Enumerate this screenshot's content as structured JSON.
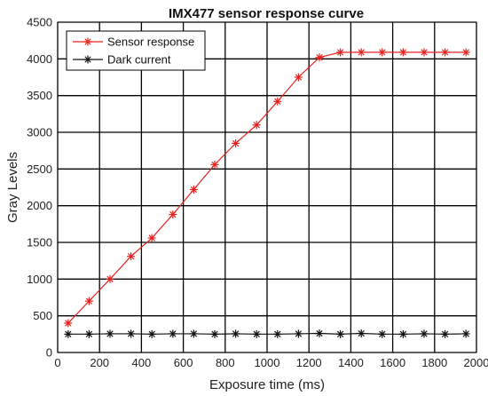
{
  "chart_data": {
    "type": "line",
    "title": "IMX477 sensor response curve",
    "xlabel": "Exposure time (ms)",
    "ylabel": "Gray Levels",
    "xlim": [
      0,
      2000
    ],
    "ylim": [
      0,
      4500
    ],
    "xticks": [
      0,
      200,
      400,
      600,
      800,
      1000,
      1200,
      1400,
      1600,
      1800,
      2000
    ],
    "yticks": [
      0,
      500,
      1000,
      1500,
      2000,
      2500,
      3000,
      3500,
      4000,
      4500
    ],
    "grid": true,
    "legend_position": "top-left",
    "x": [
      50,
      150,
      250,
      350,
      450,
      550,
      650,
      750,
      850,
      950,
      1050,
      1150,
      1250,
      1350,
      1450,
      1550,
      1650,
      1750,
      1850,
      1950
    ],
    "series": [
      {
        "name": "Sensor response",
        "color": "#e8211d",
        "marker": "asterisk",
        "values": [
          400,
          700,
          1000,
          1310,
          1560,
          1880,
          2220,
          2560,
          2850,
          3100,
          3420,
          3750,
          4020,
          4090,
          4090,
          4090,
          4090,
          4090,
          4090,
          4090
        ]
      },
      {
        "name": "Dark current",
        "color": "#111111",
        "marker": "asterisk",
        "values": [
          250,
          250,
          255,
          255,
          250,
          255,
          255,
          250,
          255,
          250,
          250,
          255,
          260,
          250,
          260,
          250,
          250,
          255,
          250,
          255
        ]
      }
    ]
  }
}
